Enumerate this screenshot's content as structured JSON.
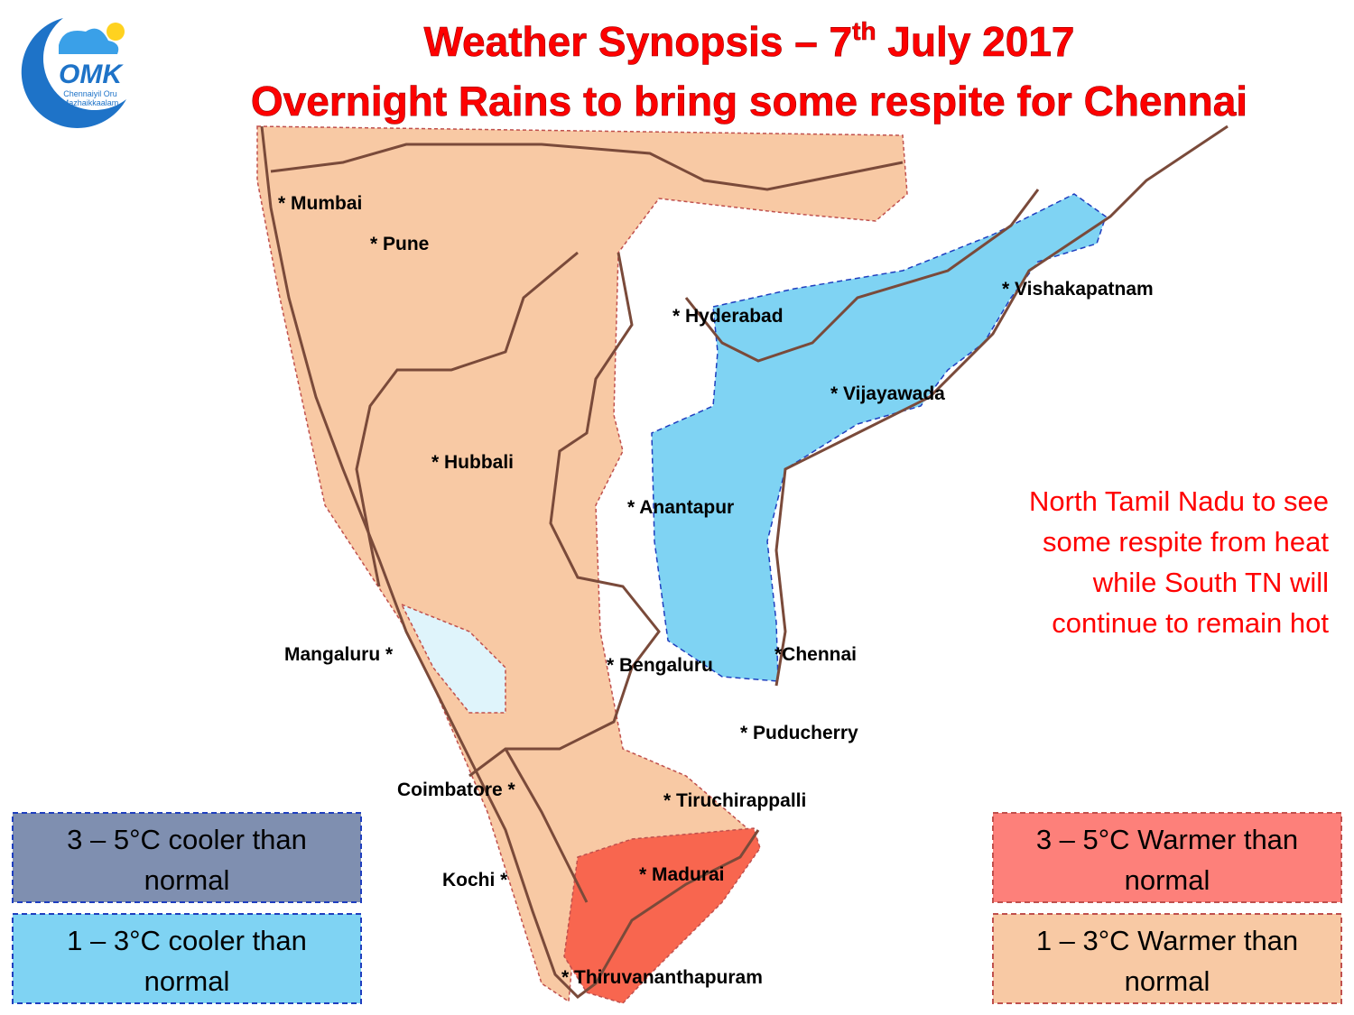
{
  "logo": {
    "text": "OMK",
    "tagline_1": "Chennaiyil Oru",
    "tagline_2": "Mazhaikkaalam"
  },
  "header": {
    "title_start": "Weather Synopsis – 7",
    "title_sup": "th",
    "title_end": " July 2017",
    "subtitle": "Overnight Rains to bring some respite for Chennai"
  },
  "cities": [
    "* Mumbai",
    "* Pune",
    "* Hyderabad",
    "* Vishakapatnam",
    "* Vijayawada",
    "* Hubbali",
    "* Anantapur",
    "Mangaluru *",
    "* Bengaluru",
    "*Chennai",
    "* Puducherry",
    "Coimbatore *",
    "* Tiruchirappalli",
    "Kochi *",
    "* Madurai",
    "* Thiruvananthapuram"
  ],
  "annotation": [
    "North Tamil Nadu to see",
    "some respite from heat",
    "while South TN will",
    "continue to remain hot"
  ],
  "legend": [
    {
      "line1": "3 – 5°C cooler than",
      "line2": "normal"
    },
    {
      "line1": "1 – 3°C cooler than",
      "line2": "normal"
    },
    {
      "line1": "3 – 5°C Warmer than",
      "line2": "normal"
    },
    {
      "line1": "1 – 3°C Warmer than",
      "line2": "normal"
    }
  ]
}
